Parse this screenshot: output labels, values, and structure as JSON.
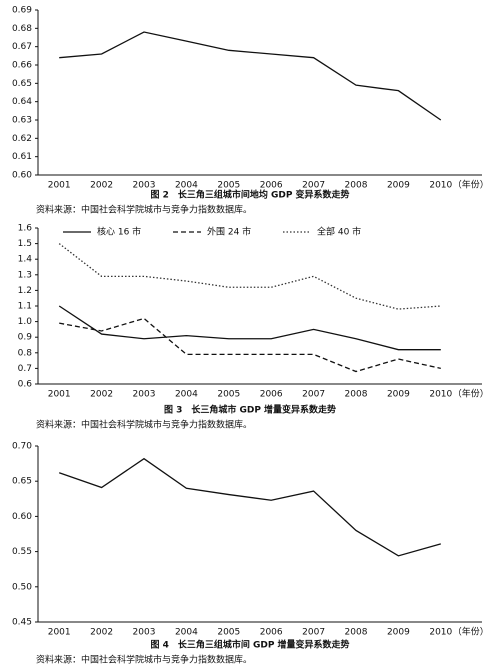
{
  "chart_data": [
    {
      "type": "line",
      "title": "图 2　长三角三组城市间地均 GDP 变异系数走势",
      "note": "资料来源：中国社会科学院城市与竞争力指数数据库。",
      "categories": [
        "2001",
        "2002",
        "2003",
        "2004",
        "2005",
        "2006",
        "2007",
        "2008",
        "2009",
        "2010"
      ],
      "xlabel": "（年份）",
      "values": [
        0.664,
        0.666,
        0.678,
        0.673,
        0.668,
        0.666,
        0.664,
        0.649,
        0.646,
        0.63
      ],
      "color": "#111111",
      "ylim": [
        0.6,
        0.69
      ],
      "yticks": [
        {
          "value": 0.6,
          "label": "0.60"
        },
        0.61,
        0.62,
        0.63,
        0.64,
        0.65,
        0.66,
        0.67,
        0.68,
        0.69
      ]
    },
    {
      "type": "line",
      "title": "图 3　长三角城市 GDP 增量变异系数走势",
      "note": "资料来源：中国社会科学院城市与竞争力指数数据库。",
      "categories": [
        "2001",
        "2002",
        "2003",
        "2004",
        "2005",
        "2006",
        "2007",
        "2008",
        "2009",
        "2010"
      ],
      "xlabel": "（年份）",
      "series": [
        {
          "name": "核心 16 市",
          "color": "#111111",
          "dash": "solid",
          "values": [
            1.1,
            0.92,
            0.89,
            0.91,
            0.89,
            0.89,
            0.95,
            0.89,
            0.82,
            0.82
          ]
        },
        {
          "name": "外围 24 市",
          "color": "#111111",
          "dash": "dashed",
          "values": [
            0.99,
            0.94,
            1.02,
            0.79,
            0.79,
            0.79,
            0.79,
            0.68,
            0.76,
            0.7
          ]
        },
        {
          "name": "全部 40 市",
          "color": "#333333",
          "dash": "dotted",
          "values": [
            1.5,
            1.29,
            1.29,
            1.26,
            1.22,
            1.22,
            1.29,
            1.15,
            1.08,
            1.1
          ]
        }
      ],
      "legend": "top",
      "ylim": [
        0.6,
        1.6
      ],
      "yticks": [
        0.6,
        0.7,
        0.8,
        0.9,
        {
          "value": 1,
          "label": "1.0"
        },
        1.1,
        1.2,
        1.3,
        1.4,
        1.5,
        1.6
      ]
    },
    {
      "type": "line",
      "title": "图 4　长三角三组城市间 GDP 增量变异系数走势",
      "note": "资料来源：中国社会科学院城市与竞争力指数数据库。",
      "categories": [
        "2001",
        "2002",
        "2003",
        "2004",
        "2005",
        "2006",
        "2007",
        "2008",
        "2009",
        "2010"
      ],
      "xlabel": "（年份）",
      "values": [
        0.662,
        0.641,
        0.682,
        0.64,
        0.631,
        0.623,
        0.636,
        0.58,
        0.544,
        0.561
      ],
      "color": "#111111",
      "ylim": [
        0.45,
        0.7
      ],
      "yticks": [
        0.45,
        {
          "value": 0.5,
          "label": "0.50"
        },
        0.55,
        {
          "value": 0.6,
          "label": "0.60"
        },
        0.65,
        {
          "value": 0.7,
          "label": "0.70"
        }
      ]
    }
  ]
}
